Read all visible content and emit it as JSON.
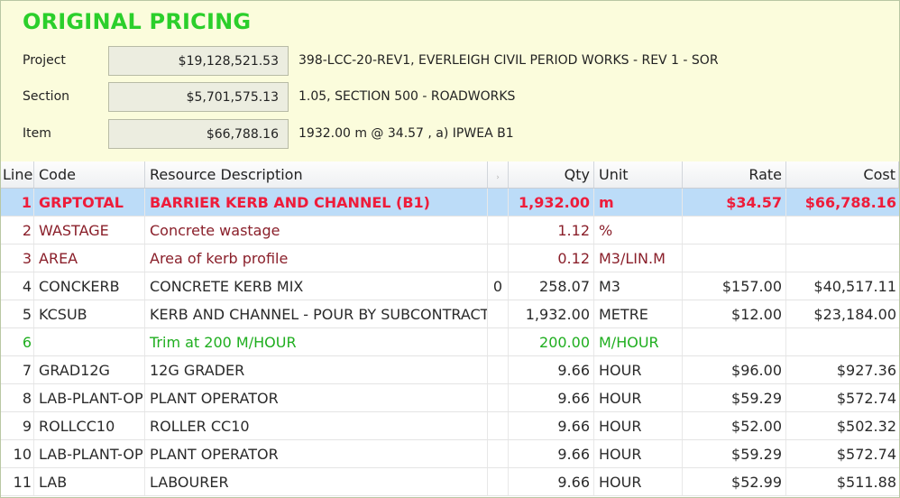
{
  "header": {
    "title": "ORIGINAL PRICING",
    "rows": [
      {
        "label": "Project",
        "value": "$19,128,521.53",
        "desc": "398-LCC-20-REV1, EVERLEIGH CIVIL PERIOD WORKS - REV 1 - SOR"
      },
      {
        "label": "Section",
        "value": "$5,701,575.13",
        "desc": "1.05, SECTION 500 - ROADWORKS"
      },
      {
        "label": "Item",
        "value": "$66,788.16",
        "desc": "1932.00 m @ 34.57 , a) IPWEA B1"
      }
    ]
  },
  "grid": {
    "columns": {
      "line": "Line",
      "code": "Code",
      "desc": "Resource Description",
      "flag": "›",
      "qty": "Qty",
      "unit": "Unit",
      "rate": "Rate",
      "cost": "Cost"
    },
    "rows": [
      {
        "line": "1",
        "code": "GRPTOTAL",
        "desc": "BARRIER KERB AND CHANNEL (B1)",
        "flag": "",
        "qty": "1,932.00",
        "unit": "m",
        "rate": "$34.57",
        "cost": "$66,788.16"
      },
      {
        "line": "2",
        "code": "WASTAGE",
        "desc": "Concrete wastage",
        "flag": "",
        "qty": "1.12",
        "unit": "%",
        "rate": "",
        "cost": ""
      },
      {
        "line": "3",
        "code": "AREA",
        "desc": "Area of kerb profile",
        "flag": "",
        "qty": "0.12",
        "unit": "M3/LIN.M",
        "rate": "",
        "cost": ""
      },
      {
        "line": "4",
        "code": "CONCKERB",
        "desc": "CONCRETE KERB MIX",
        "flag": "0",
        "qty": "258.07",
        "unit": "M3",
        "rate": "$157.00",
        "cost": "$40,517.11"
      },
      {
        "line": "5",
        "code": "KCSUB",
        "desc": "KERB AND CHANNEL - POUR BY SUBCONTRACT",
        "flag": "",
        "qty": "1,932.00",
        "unit": "METRE",
        "rate": "$12.00",
        "cost": "$23,184.00"
      },
      {
        "line": "6",
        "code": "",
        "desc": "Trim at 200 M/HOUR",
        "flag": "",
        "qty": "200.00",
        "unit": "M/HOUR",
        "rate": "",
        "cost": ""
      },
      {
        "line": "7",
        "code": "GRAD12G",
        "desc": "12G GRADER",
        "flag": "",
        "qty": "9.66",
        "unit": "HOUR",
        "rate": "$96.00",
        "cost": "$927.36"
      },
      {
        "line": "8",
        "code": "LAB-PLANT-OP",
        "desc": "PLANT OPERATOR",
        "flag": "",
        "qty": "9.66",
        "unit": "HOUR",
        "rate": "$59.29",
        "cost": "$572.74"
      },
      {
        "line": "9",
        "code": "ROLLCC10",
        "desc": "ROLLER CC10",
        "flag": "",
        "qty": "9.66",
        "unit": "HOUR",
        "rate": "$52.00",
        "cost": "$502.32"
      },
      {
        "line": "10",
        "code": "LAB-PLANT-OP",
        "desc": "PLANT OPERATOR",
        "flag": "",
        "qty": "9.66",
        "unit": "HOUR",
        "rate": "$59.29",
        "cost": "$572.74"
      },
      {
        "line": "11",
        "code": "LAB",
        "desc": "LABOURER",
        "flag": "",
        "qty": "9.66",
        "unit": "HOUR",
        "rate": "$52.99",
        "cost": "$511.88"
      }
    ]
  },
  "colors": {
    "title": "#2bcf2b",
    "header_bg": "#fbfcdc",
    "selected_bg": "#bcdcf8",
    "selected_text": "#ee1c3a",
    "note_text": "#1fae1f",
    "variable_text": "#8a1f2a"
  }
}
